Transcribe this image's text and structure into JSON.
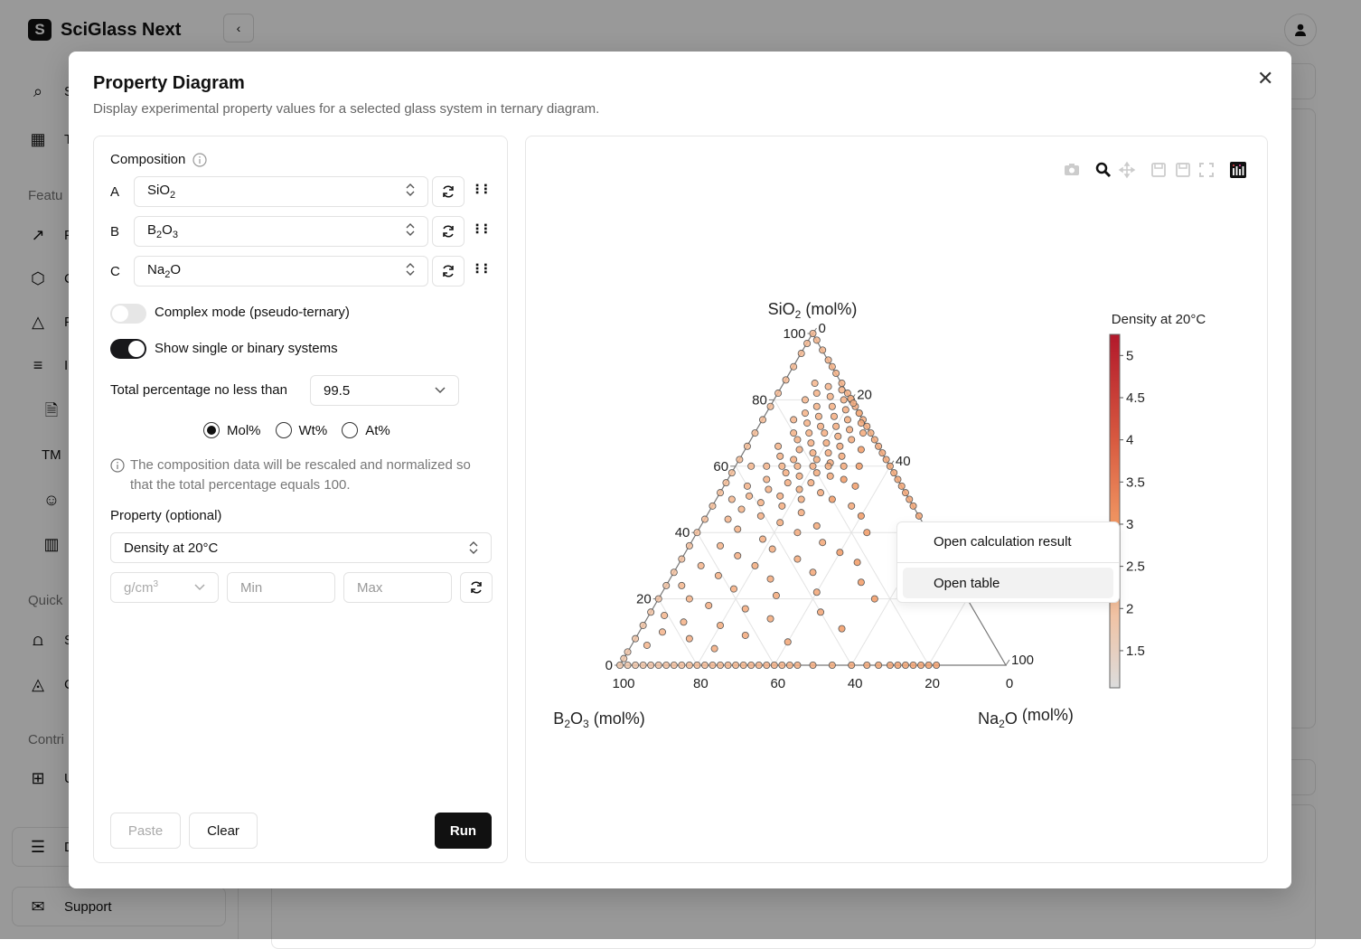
{
  "app": {
    "title": "SciGlass Next",
    "logo_letter": "S",
    "collapse_icon": "chevron-left-icon",
    "avatar_icon": "user-icon"
  },
  "sidebar": {
    "items": [
      {
        "icon": "search-icon",
        "label": "S"
      },
      {
        "icon": "table-icon",
        "label": "T"
      },
      {
        "section": "Featu"
      },
      {
        "icon": "rocket-icon",
        "label": "F"
      },
      {
        "icon": "cube-icon",
        "label": "C"
      },
      {
        "icon": "triangle-chart-icon",
        "label": "P"
      },
      {
        "icon": "list-icon",
        "label": "I"
      },
      {
        "icon": "document-icon",
        "label": ""
      },
      {
        "icon": "tm-icon",
        "label": "TM"
      },
      {
        "icon": "user-search-icon",
        "label": ""
      },
      {
        "icon": "book-icon",
        "label": ""
      },
      {
        "section": "Quick"
      },
      {
        "icon": "chart-icon",
        "label": "S"
      },
      {
        "icon": "contour-icon",
        "label": "C"
      },
      {
        "section": "Contri"
      },
      {
        "icon": "plus-square-icon",
        "label": "U"
      },
      {
        "icon": "doc-icon",
        "label": "D"
      },
      {
        "icon": "mail-icon",
        "label": "Support"
      }
    ]
  },
  "modal": {
    "title": "Property Diagram",
    "subtitle": "Display experimental property values for a selected glass system in ternary diagram.",
    "composition_label": "Composition",
    "components": [
      {
        "letter": "A",
        "base": "SiO",
        "sub": "2",
        "rest": ""
      },
      {
        "letter": "B",
        "base": "B",
        "sub": "2",
        "rest": "O",
        "sub2": "3"
      },
      {
        "letter": "C",
        "base": "Na",
        "sub": "2",
        "rest": "O"
      }
    ],
    "complex_mode": {
      "label": "Complex mode (pseudo-ternary)",
      "on": false
    },
    "show_single": {
      "label": "Show single or binary systems",
      "on": true
    },
    "total_label": "Total percentage no less than",
    "total_value": "99.5",
    "units": [
      {
        "label": "Mol%",
        "selected": true
      },
      {
        "label": "Wt%",
        "selected": false
      },
      {
        "label": "At%",
        "selected": false
      }
    ],
    "note": "The composition data will be rescaled and normalized so that the total percentage equals 100.",
    "property_label": "Property (optional)",
    "property_value": "Density at 20°C",
    "unit_value": "g/cm",
    "unit_sup": "3",
    "min_placeholder": "Min",
    "max_placeholder": "Max",
    "paste": "Paste",
    "clear": "Clear",
    "run": "Run"
  },
  "toolbar": [
    "camera-icon",
    "zoom-icon",
    "pan-icon",
    "save-icon",
    "save-alt-icon",
    "fullscreen-icon",
    "chart-logo-icon"
  ],
  "context_menu": [
    "Open calculation result",
    "Open table"
  ],
  "colors": {
    "accent": "#111111",
    "grid": "#e3e3e3",
    "axis": "#777777"
  },
  "chart_data": {
    "type": "scatter",
    "subtype": "ternary",
    "axes": {
      "a": {
        "title": "SiO",
        "sub": "2",
        "unit": " (mol%)",
        "ticks": [
          "0",
          "20",
          "40",
          "60",
          "80",
          "100"
        ]
      },
      "b": {
        "title": "B",
        "sub": "2",
        "mid": "O",
        "sub2": "3",
        "unit": " (mol%)",
        "ticks": [
          "100",
          "80",
          "60",
          "40",
          "20",
          "0"
        ]
      },
      "c": {
        "title": "Na",
        "sub": "2",
        "mid": "O",
        "unit": " (mol%)",
        "ticks": [
          "0",
          "20",
          "40",
          "100"
        ]
      }
    },
    "colorbar": {
      "title": "Density at 20°C",
      "ticks": [
        "1.5",
        "2",
        "2.5",
        "3",
        "3.5",
        "4",
        "4.5",
        "5"
      ],
      "range": [
        1.06,
        5.25
      ],
      "scale": [
        [
          0,
          "#dcdcdc"
        ],
        [
          0.25,
          "#f5bd98"
        ],
        [
          0.45,
          "#f29a64"
        ],
        [
          0.7,
          "#d85a40"
        ],
        [
          1,
          "#b2182b"
        ]
      ]
    },
    "grid": true,
    "point_order": "[SiO2, B2O3, Na2O, density]",
    "points": [
      [
        98,
        0,
        2,
        2.3
      ],
      [
        95,
        0,
        5,
        2.3
      ],
      [
        92,
        0,
        8,
        2.35
      ],
      [
        90,
        0,
        10,
        2.4
      ],
      [
        88,
        0,
        12,
        2.4
      ],
      [
        85,
        0,
        15,
        2.42
      ],
      [
        82,
        0,
        18,
        2.45
      ],
      [
        80,
        0,
        20,
        2.45
      ],
      [
        78,
        0,
        22,
        2.48
      ],
      [
        76,
        0,
        24,
        2.5
      ],
      [
        74,
        0,
        26,
        2.5
      ],
      [
        72,
        0,
        28,
        2.52
      ],
      [
        70,
        0,
        30,
        2.55
      ],
      [
        68,
        0,
        32,
        2.57
      ],
      [
        66,
        0,
        34,
        2.58
      ],
      [
        64,
        0,
        36,
        2.6
      ],
      [
        62,
        0,
        38,
        2.6
      ],
      [
        60,
        0,
        40,
        2.62
      ],
      [
        58,
        0,
        42,
        2.62
      ],
      [
        56,
        0,
        44,
        2.64
      ],
      [
        54,
        0,
        46,
        2.65
      ],
      [
        52,
        0,
        48,
        2.65
      ],
      [
        50,
        0,
        50,
        2.66
      ],
      [
        48,
        0,
        52,
        2.66
      ],
      [
        45,
        0,
        55,
        2.68
      ],
      [
        100,
        0,
        0,
        2.2
      ],
      [
        97,
        3,
        0,
        2.2
      ],
      [
        94,
        6,
        0,
        2.2
      ],
      [
        90,
        10,
        0,
        2.2
      ],
      [
        86,
        14,
        0,
        2.18
      ],
      [
        82,
        18,
        0,
        2.17
      ],
      [
        78,
        22,
        0,
        2.16
      ],
      [
        74,
        26,
        0,
        2.15
      ],
      [
        70,
        30,
        0,
        2.14
      ],
      [
        66,
        34,
        0,
        2.13
      ],
      [
        62,
        38,
        0,
        2.12
      ],
      [
        58,
        42,
        0,
        2.11
      ],
      [
        55,
        45,
        0,
        2.1
      ],
      [
        52,
        48,
        0,
        2.1
      ],
      [
        48,
        52,
        0,
        2.08
      ],
      [
        44,
        56,
        0,
        2.06
      ],
      [
        40,
        60,
        0,
        2.05
      ],
      [
        36,
        64,
        0,
        2.03
      ],
      [
        32,
        68,
        0,
        2.0
      ],
      [
        28,
        72,
        0,
        1.98
      ],
      [
        24,
        76,
        0,
        1.95
      ],
      [
        20,
        80,
        0,
        1.93
      ],
      [
        16,
        84,
        0,
        1.92
      ],
      [
        12,
        88,
        0,
        1.9
      ],
      [
        8,
        92,
        0,
        1.88
      ],
      [
        4,
        96,
        0,
        1.86
      ],
      [
        2,
        98,
        0,
        1.85
      ],
      [
        0,
        100,
        0,
        1.84
      ],
      [
        0,
        98,
        2,
        1.85
      ],
      [
        0,
        96,
        4,
        1.87
      ],
      [
        0,
        94,
        6,
        1.9
      ],
      [
        0,
        92,
        8,
        1.93
      ],
      [
        0,
        90,
        10,
        1.96
      ],
      [
        0,
        88,
        12,
        2.0
      ],
      [
        0,
        86,
        14,
        2.03
      ],
      [
        0,
        84,
        16,
        2.06
      ],
      [
        0,
        82,
        18,
        2.1
      ],
      [
        0,
        80,
        20,
        2.13
      ],
      [
        0,
        78,
        22,
        2.16
      ],
      [
        0,
        76,
        24,
        2.2
      ],
      [
        0,
        74,
        26,
        2.22
      ],
      [
        0,
        72,
        28,
        2.25
      ],
      [
        0,
        70,
        30,
        2.28
      ],
      [
        0,
        68,
        32,
        2.3
      ],
      [
        0,
        66,
        34,
        2.32
      ],
      [
        0,
        64,
        36,
        2.34
      ],
      [
        0,
        62,
        38,
        2.36
      ],
      [
        0,
        60,
        40,
        2.38
      ],
      [
        0,
        58,
        42,
        2.4
      ],
      [
        0,
        56,
        44,
        2.42
      ],
      [
        0,
        54,
        46,
        2.44
      ],
      [
        0,
        50,
        50,
        2.5
      ],
      [
        0,
        45,
        55,
        2.55
      ],
      [
        0,
        40,
        60,
        2.6
      ],
      [
        0,
        36,
        64,
        2.62
      ],
      [
        0,
        33,
        67,
        2.64
      ],
      [
        0,
        30,
        70,
        2.66
      ],
      [
        0,
        28,
        72,
        2.68
      ],
      [
        0,
        26,
        74,
        2.7
      ],
      [
        0,
        24,
        76,
        2.72
      ],
      [
        0,
        22,
        78,
        2.74
      ],
      [
        0,
        20,
        80,
        2.76
      ],
      [
        0,
        18,
        82,
        2.78
      ],
      [
        85,
        7,
        8,
        2.3
      ],
      [
        84,
        4,
        12,
        2.35
      ],
      [
        83,
        1,
        16,
        2.4
      ],
      [
        82,
        8,
        10,
        2.4
      ],
      [
        82,
        -2,
        20,
        2.45
      ],
      [
        81,
        5,
        14,
        2.4
      ],
      [
        80,
        2,
        18,
        2.45
      ],
      [
        80,
        12,
        8,
        2.3
      ],
      [
        79,
        0,
        21,
        2.5
      ],
      [
        78,
        10,
        12,
        2.4
      ],
      [
        78,
        6,
        16,
        2.45
      ],
      [
        77,
        3,
        20,
        2.5
      ],
      [
        76,
        14,
        10,
        2.4
      ],
      [
        76,
        0,
        24,
        2.55
      ],
      [
        75,
        11,
        14,
        2.45
      ],
      [
        75,
        7,
        18,
        2.5
      ],
      [
        74,
        4,
        22,
        2.55
      ],
      [
        74,
        18,
        8,
        2.35
      ],
      [
        73,
        15,
        12,
        2.42
      ],
      [
        73,
        1,
        26,
        2.6
      ],
      [
        72,
        12,
        16,
        2.48
      ],
      [
        72,
        8,
        20,
        2.52
      ],
      [
        71,
        5,
        24,
        2.56
      ],
      [
        70,
        20,
        10,
        2.4
      ],
      [
        70,
        16,
        14,
        2.45
      ],
      [
        70,
        12,
        18,
        2.5
      ],
      [
        70,
        2,
        28,
        2.62
      ],
      [
        69,
        9,
        22,
        2.55
      ],
      [
        68,
        20,
        12,
        2.45
      ],
      [
        68,
        6,
        26,
        2.6
      ],
      [
        67,
        17,
        16,
        2.5
      ],
      [
        67,
        13,
        20,
        2.55
      ],
      [
        66,
        26,
        8,
        2.4
      ],
      [
        66,
        10,
        24,
        2.58
      ],
      [
        65,
        21,
        14,
        2.5
      ],
      [
        65,
        5,
        30,
        2.95
      ],
      [
        64,
        18,
        18,
        2.52
      ],
      [
        64,
        14,
        22,
        2.56
      ],
      [
        63,
        27,
        10,
        2.45
      ],
      [
        63,
        11,
        26,
        2.6
      ],
      [
        62,
        24,
        14,
        2.5
      ],
      [
        62,
        18,
        20,
        2.55
      ],
      [
        61,
        15,
        24,
        2.58
      ],
      [
        60,
        36,
        4,
        2.3
      ],
      [
        60,
        32,
        8,
        2.35
      ],
      [
        60,
        28,
        12,
        2.4
      ],
      [
        60,
        24,
        16,
        2.45
      ],
      [
        60,
        20,
        20,
        2.5
      ],
      [
        60,
        16,
        24,
        2.55
      ],
      [
        60,
        12,
        28,
        2.6
      ],
      [
        60,
        8,
        32,
        2.95
      ],
      [
        58,
        28,
        14,
        2.5
      ],
      [
        58,
        20,
        22,
        2.55
      ],
      [
        57,
        25,
        18,
        2.52
      ],
      [
        57,
        17,
        26,
        2.6
      ],
      [
        56,
        34,
        10,
        2.42
      ],
      [
        56,
        14,
        30,
        2.95
      ],
      [
        55,
        29,
        16,
        2.5
      ],
      [
        55,
        23,
        22,
        2.56
      ],
      [
        54,
        40,
        6,
        2.35
      ],
      [
        54,
        12,
        34,
        2.9
      ],
      [
        53,
        35,
        12,
        2.45
      ],
      [
        53,
        27,
        20,
        2.55
      ],
      [
        52,
        22,
        26,
        2.6
      ],
      [
        51,
        41,
        8,
        2.4
      ],
      [
        51,
        33,
        16,
        2.5
      ],
      [
        50,
        46,
        4,
        2.3
      ],
      [
        50,
        28,
        22,
        2.57
      ],
      [
        50,
        20,
        30,
        2.95
      ],
      [
        49,
        39,
        12,
        2.45
      ],
      [
        48,
        34,
        18,
        2.52
      ],
      [
        48,
        16,
        36,
        2.65
      ],
      [
        47,
        45,
        8,
        2.4
      ],
      [
        46,
        30,
        24,
        2.58
      ],
      [
        45,
        41,
        14,
        2.48
      ],
      [
        45,
        15,
        40,
        2.95
      ],
      [
        44,
        50,
        6,
        2.35
      ],
      [
        43,
        37,
        20,
        2.55
      ],
      [
        42,
        28,
        30,
        2.62
      ],
      [
        41,
        49,
        10,
        2.42
      ],
      [
        40,
        34,
        26,
        2.58
      ],
      [
        40,
        16,
        44,
        2.95
      ],
      [
        38,
        44,
        18,
        2.52
      ],
      [
        37,
        29,
        34,
        2.65
      ],
      [
        36,
        56,
        8,
        2.4
      ],
      [
        35,
        43,
        22,
        2.56
      ],
      [
        34,
        26,
        40,
        2.95
      ],
      [
        33,
        53,
        14,
        2.48
      ],
      [
        32,
        38,
        30,
        2.62
      ],
      [
        31,
        23,
        46,
        2.95
      ],
      [
        30,
        64,
        6,
        2.35
      ],
      [
        30,
        50,
        20,
        2.55
      ],
      [
        28,
        36,
        36,
        2.65
      ],
      [
        27,
        61,
        12,
        2.45
      ],
      [
        26,
        48,
        26,
        2.6
      ],
      [
        25,
        25,
        50,
        2.95
      ],
      [
        24,
        72,
        4,
        2.3
      ],
      [
        23,
        59,
        18,
        2.52
      ],
      [
        22,
        38,
        40,
        2.65
      ],
      [
        21,
        49,
        30,
        2.62
      ],
      [
        20,
        72,
        8,
        2.4
      ],
      [
        20,
        24,
        56,
        2.95
      ],
      [
        18,
        68,
        14,
        2.48
      ],
      [
        17,
        59,
        24,
        2.58
      ],
      [
        16,
        40,
        44,
        2.68
      ],
      [
        15,
        81,
        4,
        2.3
      ],
      [
        14,
        54,
        32,
        2.62
      ],
      [
        13,
        77,
        10,
        2.42
      ],
      [
        12,
        68,
        20,
        2.55
      ],
      [
        11,
        37,
        52,
        2.95
      ],
      [
        10,
        84,
        6,
        2.35
      ],
      [
        9,
        63,
        28,
        2.6
      ],
      [
        8,
        78,
        14,
        2.48
      ],
      [
        7,
        53,
        40,
        2.65
      ],
      [
        6,
        90,
        4,
        2.3
      ],
      [
        5,
        73,
        22,
        2.56
      ]
    ]
  }
}
